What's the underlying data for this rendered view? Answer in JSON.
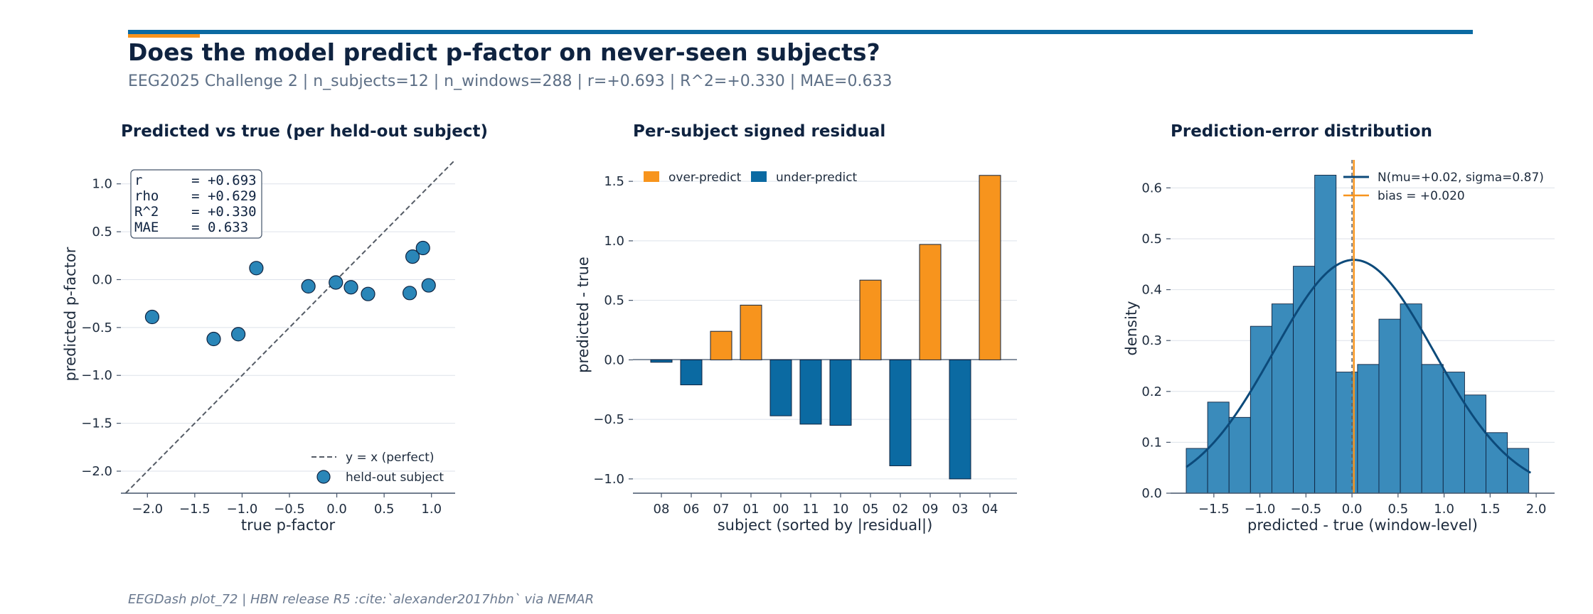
{
  "header": {
    "title": "Does the model predict p-factor on never-seen subjects?",
    "subtitle": "EEG2025 Challenge 2 | n_subjects=12 | n_windows=288 | r=+0.693 | R^2=+0.330 | MAE=0.633"
  },
  "footer": "EEGDash plot_72 | HBN release R5 :cite:`alexander2017hbn` via NEMAR",
  "colors": {
    "navy": "#0f2340",
    "accent_blue": "#0b6aa2",
    "accent_orange": "#f7941d",
    "point_fill": "#2a86b8",
    "hist_fill": "#3a8bbb",
    "normal_line": "#0c4a7a"
  },
  "chart_data": [
    {
      "type": "scatter",
      "title": "Predicted vs true (per held-out subject)",
      "xlabel": "true p-factor",
      "ylabel": "predicted p-factor",
      "xlim": [
        -2.28,
        1.25
      ],
      "ylim": [
        -2.23,
        1.25
      ],
      "xticks": [
        -2.0,
        -1.5,
        -1.0,
        -0.5,
        0.0,
        0.5,
        1.0
      ],
      "xtick_labels": [
        "−2.0",
        "−1.5",
        "−1.0",
        "−0.5",
        "0.0",
        "0.5",
        "1.0"
      ],
      "yticks": [
        -2.0,
        -1.5,
        -1.0,
        -0.5,
        0.0,
        0.5,
        1.0
      ],
      "ytick_labels": [
        "−2.0",
        "−1.5",
        "−1.0",
        "−0.5",
        "0.0",
        "0.5",
        "1.0"
      ],
      "grid": "horizontal",
      "points": [
        {
          "x": -1.95,
          "y": -0.39
        },
        {
          "x": -1.3,
          "y": -0.62
        },
        {
          "x": -1.04,
          "y": -0.57
        },
        {
          "x": -0.85,
          "y": 0.12
        },
        {
          "x": -0.3,
          "y": -0.07
        },
        {
          "x": -0.01,
          "y": -0.03
        },
        {
          "x": 0.15,
          "y": -0.08
        },
        {
          "x": 0.33,
          "y": -0.15
        },
        {
          "x": 0.77,
          "y": -0.14
        },
        {
          "x": 0.8,
          "y": 0.24
        },
        {
          "x": 0.91,
          "y": 0.33
        },
        {
          "x": 0.97,
          "y": -0.06
        }
      ],
      "identity_line_label": "y = x (perfect)",
      "points_label": "held-out subject",
      "legend_position": "lower-right",
      "stats_box": [
        "r      = +0.693",
        "rho    = +0.629",
        "R^2    = +0.330",
        "MAE    = 0.633"
      ]
    },
    {
      "type": "bar",
      "title": "Per-subject signed residual",
      "xlabel": "subject (sorted by |residual|)",
      "ylabel": "predicted - true",
      "ylim": [
        -1.12,
        1.68
      ],
      "yticks": [
        -1.0,
        -0.5,
        0.0,
        0.5,
        1.0,
        1.5
      ],
      "ytick_labels": [
        "−1.0",
        "−0.5",
        "0.0",
        "0.5",
        "1.0",
        "1.5"
      ],
      "grid": "horizontal",
      "categories": [
        "08",
        "06",
        "07",
        "01",
        "00",
        "11",
        "10",
        "05",
        "02",
        "09",
        "03",
        "04"
      ],
      "values": [
        -0.02,
        -0.21,
        0.24,
        0.46,
        -0.47,
        -0.54,
        -0.55,
        0.67,
        -0.89,
        0.97,
        -1.0,
        1.55
      ],
      "legend": [
        {
          "name": "over-predict",
          "color": "#f7941d"
        },
        {
          "name": "under-predict",
          "color": "#0b6aa2"
        }
      ],
      "legend_position": "top-left"
    },
    {
      "type": "histogram",
      "title": "Prediction-error distribution",
      "xlabel": "predicted - true (window-level)",
      "ylabel": "density",
      "xlim": [
        -1.97,
        2.2
      ],
      "ylim": [
        0,
        0.655
      ],
      "xticks": [
        -1.5,
        -1.0,
        -0.5,
        0.0,
        0.5,
        1.0,
        1.5,
        2.0
      ],
      "xtick_labels": [
        "−1.5",
        "−1.0",
        "−0.5",
        "0.0",
        "0.5",
        "1.0",
        "1.5",
        "2.0"
      ],
      "yticks": [
        0.0,
        0.1,
        0.2,
        0.3,
        0.4,
        0.5,
        0.6
      ],
      "ytick_labels": [
        "0.0",
        "0.1",
        "0.2",
        "0.3",
        "0.4",
        "0.5",
        "0.6"
      ],
      "grid": "horizontal",
      "bin_start": -1.8,
      "bin_width": 0.2325,
      "densities": [
        0.088,
        0.179,
        0.149,
        0.328,
        0.372,
        0.446,
        0.625,
        0.238,
        0.253,
        0.342,
        0.372,
        0.253,
        0.238,
        0.193,
        0.119,
        0.088
      ],
      "normal": {
        "mu": 0.02,
        "sigma": 0.87,
        "label": "N(mu=+0.02, sigma=0.87)",
        "x_range": [
          -1.8,
          1.94
        ]
      },
      "bias": {
        "value": 0.02,
        "label": "bias = +0.020"
      },
      "zero_line": 0.0,
      "legend_position": "top-right"
    }
  ]
}
